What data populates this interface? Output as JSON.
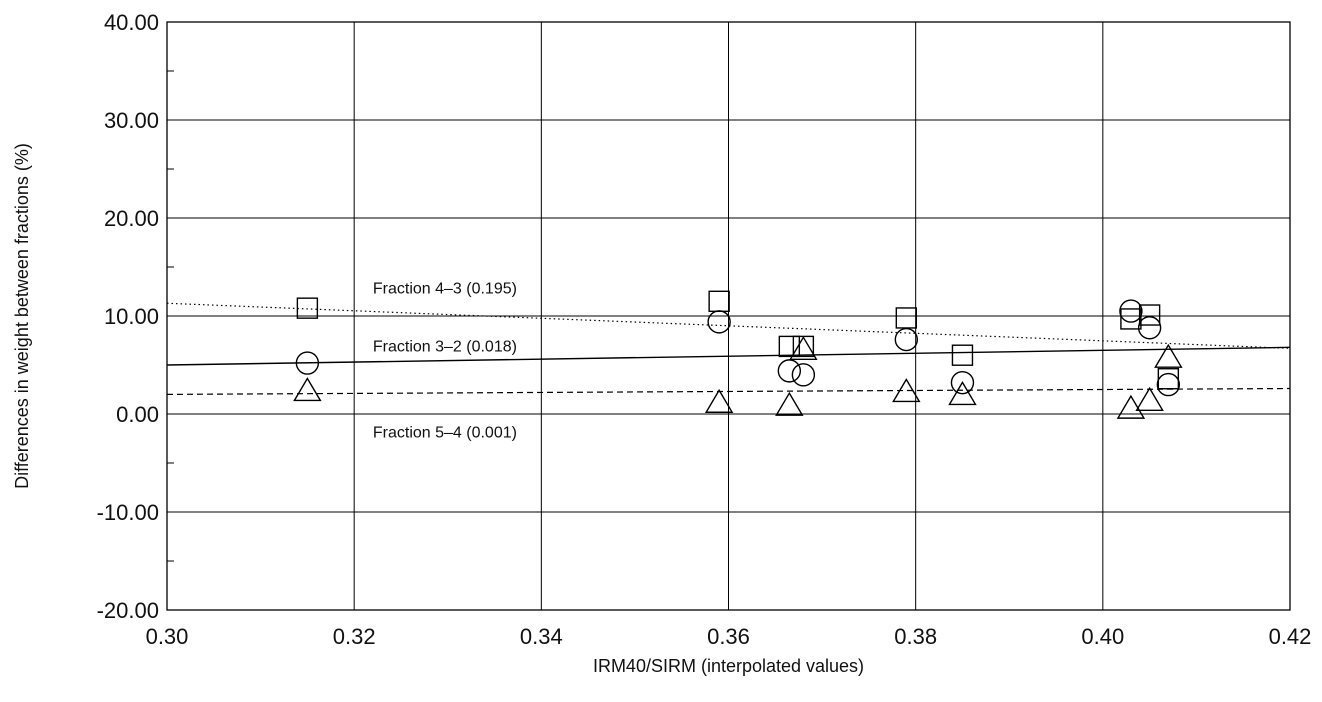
{
  "chart_data": {
    "type": "scatter",
    "xlabel": "IRM40/SIRM (interpolated values)",
    "ylabel": "Differences in weight between fractions (%)",
    "xlim": [
      0.3,
      0.42
    ],
    "ylim": [
      -20,
      40
    ],
    "x_ticks": [
      0.3,
      0.32,
      0.34,
      0.36,
      0.38,
      0.4,
      0.42
    ],
    "x_tick_labels": [
      "0.30",
      "0.32",
      "0.34",
      "0.36",
      "0.38",
      "0.40",
      "0.42"
    ],
    "y_ticks": [
      -20,
      -10,
      0,
      10,
      20,
      30,
      40
    ],
    "y_tick_labels": [
      "-20.00",
      "-10.00",
      "0.00",
      "10.00",
      "20.00",
      "30.00",
      "40.00"
    ],
    "grid": true,
    "series": [
      {
        "marker": "square",
        "points": [
          {
            "x": 0.315,
            "y": 10.8
          },
          {
            "x": 0.359,
            "y": 11.5
          },
          {
            "x": 0.3665,
            "y": 6.9
          },
          {
            "x": 0.368,
            "y": 6.9
          },
          {
            "x": 0.379,
            "y": 9.8
          },
          {
            "x": 0.385,
            "y": 6.0
          },
          {
            "x": 0.403,
            "y": 9.7
          },
          {
            "x": 0.405,
            "y": 10.1
          },
          {
            "x": 0.407,
            "y": 3.6
          }
        ]
      },
      {
        "marker": "circle",
        "points": [
          {
            "x": 0.315,
            "y": 5.2
          },
          {
            "x": 0.359,
            "y": 9.4
          },
          {
            "x": 0.3665,
            "y": 4.4
          },
          {
            "x": 0.368,
            "y": 4.0
          },
          {
            "x": 0.379,
            "y": 7.6
          },
          {
            "x": 0.385,
            "y": 3.2
          },
          {
            "x": 0.403,
            "y": 10.5
          },
          {
            "x": 0.405,
            "y": 8.8
          },
          {
            "x": 0.407,
            "y": 3.0
          }
        ]
      },
      {
        "marker": "triangle",
        "points": [
          {
            "x": 0.315,
            "y": 2.4
          },
          {
            "x": 0.359,
            "y": 1.2
          },
          {
            "x": 0.3665,
            "y": 0.9
          },
          {
            "x": 0.368,
            "y": 6.6
          },
          {
            "x": 0.379,
            "y": 2.3
          },
          {
            "x": 0.385,
            "y": 2.0
          },
          {
            "x": 0.403,
            "y": 0.6
          },
          {
            "x": 0.405,
            "y": 1.4
          },
          {
            "x": 0.407,
            "y": 5.8
          }
        ]
      }
    ],
    "lines": [
      {
        "style": "dotted",
        "x": [
          0.3,
          0.42
        ],
        "y": [
          11.3,
          6.7
        ]
      },
      {
        "style": "solid",
        "x": [
          0.3,
          0.42
        ],
        "y": [
          5.0,
          6.8
        ]
      },
      {
        "style": "dashed",
        "x": [
          0.3,
          0.42
        ],
        "y": [
          2.0,
          2.6
        ]
      }
    ],
    "annotations": [
      {
        "text": "Fraction 4–3 (0.195)",
        "x": 0.322,
        "y": 12.3
      },
      {
        "text": "Fraction 3–2 (0.018)",
        "x": 0.322,
        "y": 6.4
      },
      {
        "text": "Fraction 5–4 (0.001)",
        "x": 0.322,
        "y": -2.4
      }
    ]
  }
}
